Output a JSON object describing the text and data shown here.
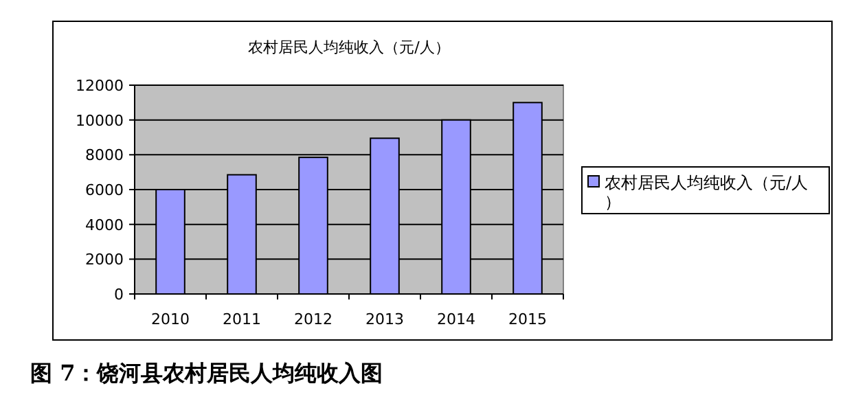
{
  "chart_data": {
    "type": "bar",
    "title": "农村居民人均纯收入（元/人）",
    "categories": [
      "2010",
      "2011",
      "2012",
      "2013",
      "2014",
      "2015"
    ],
    "series": [
      {
        "name": "农村居民人均纯收入（元/人）",
        "color": "#9999ff",
        "values": [
          6000,
          6850,
          7850,
          8950,
          10000,
          11000
        ]
      }
    ],
    "ylim": [
      0,
      12000
    ],
    "yticks": [
      0,
      2000,
      4000,
      6000,
      8000,
      10000,
      12000
    ],
    "grid": "y",
    "legend": "right",
    "annotations": [
      "图 7：饶河县农村居民人均纯收入图"
    ]
  }
}
